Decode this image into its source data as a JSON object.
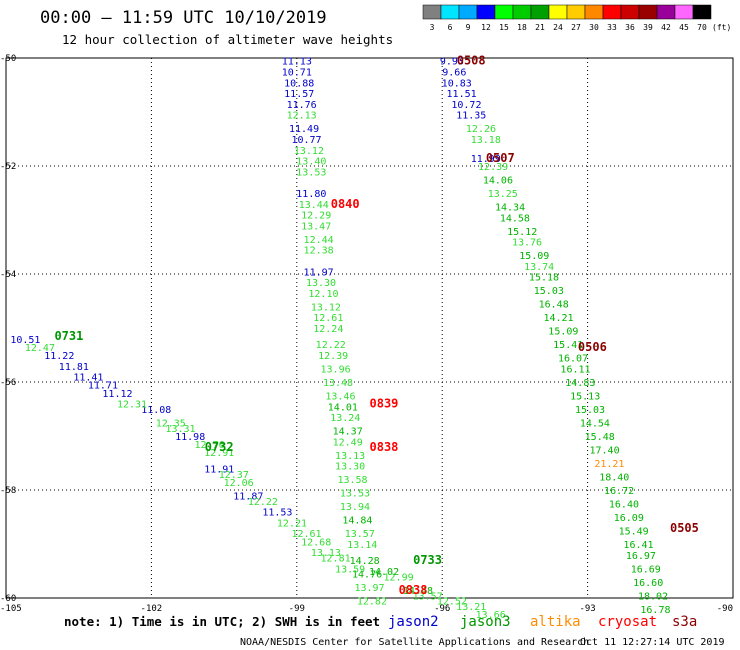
{
  "header": {
    "title": "00:00 — 11:59 UTC 10/10/2019",
    "subtitle": "12 hour collection of altimeter wave heights"
  },
  "colors": {
    "jason2": "#0000cc",
    "jason3": "#009600",
    "altika": "#ff8c00",
    "cryosat": "#ff0000",
    "s3a": "#8b0000"
  },
  "scale": {
    "labels": [
      "3",
      "6",
      "9",
      "12",
      "15",
      "18",
      "21",
      "24",
      "27",
      "30",
      "33",
      "36",
      "39",
      "42",
      "45",
      "70"
    ],
    "unit": "(ft)",
    "colors": [
      "#808080",
      "#00e5ff",
      "#00aaff",
      "#0000ff",
      "#00ff00",
      "#00cc00",
      "#00a000",
      "#ffff00",
      "#ffcc00",
      "#ff8800",
      "#ff0000",
      "#cc0000",
      "#990000",
      "#990099",
      "#ff66ff",
      "#000000"
    ]
  },
  "footer": {
    "note": "note: 1) Time is in UTC; 2) SWH is in feet",
    "legend": [
      {
        "name": "jason2",
        "color": "#0000cc"
      },
      {
        "name": "jason3",
        "color": "#009600"
      },
      {
        "name": "altika",
        "color": "#ff8c00"
      },
      {
        "name": "cryosat",
        "color": "#ff0000"
      },
      {
        "name": "s3a",
        "color": "#8b0000"
      }
    ],
    "credit": "NOAA/NESDIS Center for Satellite Applications and Research",
    "stamp": "Oct 11 12:27:14 UTC 2019"
  },
  "chart_data": {
    "type": "scatter",
    "xlim": [
      -105,
      -90
    ],
    "ylim": [
      -60,
      -50
    ],
    "xticks": [
      -105,
      -102,
      -99,
      -96,
      -93,
      -90
    ],
    "yticks": [
      -50,
      -52,
      -54,
      -56,
      -58,
      -60
    ],
    "x_tick_labels": [
      "-105",
      "-102",
      "-99",
      "-96",
      "-93",
      "-90"
    ],
    "y_tick_labels": [
      "-50",
      "-52",
      "-54",
      "-56",
      "-58",
      "-60"
    ],
    "grid": true,
    "time_labels": [
      {
        "text": "0508",
        "x": -95.7,
        "y": -50.05,
        "color": "#8b0000"
      },
      {
        "text": "0507",
        "x": -95.1,
        "y": -51.85,
        "color": "#8b0000"
      },
      {
        "text": "0840",
        "x": -98.3,
        "y": -52.7,
        "color": "#ff0000"
      },
      {
        "text": "0731",
        "x": -104.0,
        "y": -55.15,
        "color": "#009600"
      },
      {
        "text": "0506",
        "x": -93.2,
        "y": -55.35,
        "color": "#8b0000"
      },
      {
        "text": "0839",
        "x": -97.5,
        "y": -56.4,
        "color": "#ff0000"
      },
      {
        "text": "0838",
        "x": -97.5,
        "y": -57.2,
        "color": "#ff0000"
      },
      {
        "text": "0732",
        "x": -100.9,
        "y": -57.2,
        "color": "#009600"
      },
      {
        "text": "0733",
        "x": -96.6,
        "y": -59.3,
        "color": "#009600"
      },
      {
        "text": "0505",
        "x": -91.3,
        "y": -58.7,
        "color": "#8b0000"
      },
      {
        "text": "0838",
        "x": -96.9,
        "y": -59.85,
        "color": "#ff0000"
      }
    ],
    "series": [
      {
        "name": "jason2",
        "color": "#0000cc",
        "points": [
          {
            "x": -99.0,
            "y": -50.05,
            "v": "11.13"
          },
          {
            "x": -99.0,
            "y": -50.25,
            "v": "10.71"
          },
          {
            "x": -98.95,
            "y": -50.45,
            "v": "10.88"
          },
          {
            "x": -98.95,
            "y": -50.65,
            "v": "11.57"
          },
          {
            "x": -98.9,
            "y": -50.85,
            "v": "11.76"
          },
          {
            "x": -98.85,
            "y": -51.3,
            "v": "11.49"
          },
          {
            "x": -98.8,
            "y": -51.5,
            "v": "10.77"
          },
          {
            "x": -98.7,
            "y": -52.5,
            "v": "11.80"
          },
          {
            "x": -98.55,
            "y": -53.95,
            "v": "11.97"
          },
          {
            "x": -95.8,
            "y": -50.05,
            "v": "9.93"
          },
          {
            "x": -95.75,
            "y": -50.25,
            "v": "9.66"
          },
          {
            "x": -95.7,
            "y": -50.45,
            "v": "10.83"
          },
          {
            "x": -95.6,
            "y": -50.65,
            "v": "11.51"
          },
          {
            "x": -95.5,
            "y": -50.85,
            "v": "10.72"
          },
          {
            "x": -95.4,
            "y": -51.05,
            "v": "11.35"
          },
          {
            "x": -95.1,
            "y": -51.85,
            "v": "11.99"
          },
          {
            "x": -104.6,
            "y": -55.2,
            "v": "10.51"
          },
          {
            "x": -103.9,
            "y": -55.5,
            "v": "11.22"
          },
          {
            "x": -103.6,
            "y": -55.7,
            "v": "11.81"
          },
          {
            "x": -103.3,
            "y": -55.9,
            "v": "11.41"
          },
          {
            "x": -103.0,
            "y": -56.05,
            "v": "11.71"
          },
          {
            "x": -102.7,
            "y": -56.2,
            "v": "11.12"
          },
          {
            "x": -101.9,
            "y": -56.5,
            "v": "11.08"
          },
          {
            "x": -101.2,
            "y": -57.0,
            "v": "11.98"
          },
          {
            "x": -100.6,
            "y": -57.6,
            "v": "11.91"
          },
          {
            "x": -100.0,
            "y": -58.1,
            "v": "11.87"
          },
          {
            "x": -99.4,
            "y": -58.4,
            "v": "11.53"
          }
        ]
      },
      {
        "name": "jason3",
        "color": "#009600",
        "points": [
          {
            "x": -98.9,
            "y": -51.05,
            "v": "12.13"
          },
          {
            "x": -98.75,
            "y": -51.7,
            "v": "13.12"
          },
          {
            "x": -98.7,
            "y": -51.9,
            "v": "13.40"
          },
          {
            "x": -98.7,
            "y": -52.1,
            "v": "13.53"
          },
          {
            "x": -98.65,
            "y": -52.7,
            "v": "13.44"
          },
          {
            "x": -98.6,
            "y": -52.9,
            "v": "12.29"
          },
          {
            "x": -98.6,
            "y": -53.1,
            "v": "13.47"
          },
          {
            "x": -98.55,
            "y": -53.35,
            "v": "12.44"
          },
          {
            "x": -98.55,
            "y": -53.55,
            "v": "12.38"
          },
          {
            "x": -98.5,
            "y": -54.15,
            "v": "13.30"
          },
          {
            "x": -98.45,
            "y": -54.35,
            "v": "12.10"
          },
          {
            "x": -98.4,
            "y": -54.6,
            "v": "13.12"
          },
          {
            "x": -98.35,
            "y": -54.8,
            "v": "12.61"
          },
          {
            "x": -98.35,
            "y": -55.0,
            "v": "12.24"
          },
          {
            "x": -98.3,
            "y": -55.3,
            "v": "12.22"
          },
          {
            "x": -98.25,
            "y": -55.5,
            "v": "12.39"
          },
          {
            "x": -98.2,
            "y": -55.75,
            "v": "13.96"
          },
          {
            "x": -98.15,
            "y": -56.0,
            "v": "13.48"
          },
          {
            "x": -98.1,
            "y": -56.25,
            "v": "13.46"
          },
          {
            "x": -98.05,
            "y": -56.45,
            "v": "14.01"
          },
          {
            "x": -98.0,
            "y": -56.65,
            "v": "13.24"
          },
          {
            "x": -97.95,
            "y": -56.9,
            "v": "14.37"
          },
          {
            "x": -97.95,
            "y": -57.1,
            "v": "12.49"
          },
          {
            "x": -97.9,
            "y": -57.35,
            "v": "13.13"
          },
          {
            "x": -97.9,
            "y": -57.55,
            "v": "13.30"
          },
          {
            "x": -97.85,
            "y": -57.8,
            "v": "13.58"
          },
          {
            "x": -97.8,
            "y": -58.05,
            "v": "13.53"
          },
          {
            "x": -97.8,
            "y": -58.3,
            "v": "13.94"
          },
          {
            "x": -97.75,
            "y": -58.55,
            "v": "14.84"
          },
          {
            "x": -97.7,
            "y": -58.8,
            "v": "13.57"
          },
          {
            "x": -97.65,
            "y": -59.0,
            "v": "13.14"
          },
          {
            "x": -97.6,
            "y": -59.3,
            "v": "14.28"
          },
          {
            "x": -97.55,
            "y": -59.55,
            "v": "14.76"
          },
          {
            "x": -97.5,
            "y": -59.8,
            "v": "13.97"
          },
          {
            "x": -97.45,
            "y": -60.05,
            "v": "12.82"
          },
          {
            "x": -95.2,
            "y": -51.3,
            "v": "12.26"
          },
          {
            "x": -95.1,
            "y": -51.5,
            "v": "13.18"
          },
          {
            "x": -94.95,
            "y": -52.0,
            "v": "12.39"
          },
          {
            "x": -94.85,
            "y": -52.25,
            "v": "14.06"
          },
          {
            "x": -94.75,
            "y": -52.5,
            "v": "13.25"
          },
          {
            "x": -94.6,
            "y": -52.75,
            "v": "14.34"
          },
          {
            "x": -94.5,
            "y": -52.95,
            "v": "14.58"
          },
          {
            "x": -94.35,
            "y": -53.2,
            "v": "15.12"
          },
          {
            "x": -94.25,
            "y": -53.4,
            "v": "13.76"
          },
          {
            "x": -94.1,
            "y": -53.65,
            "v": "15.09"
          },
          {
            "x": -94.0,
            "y": -53.85,
            "v": "13.74"
          },
          {
            "x": -93.9,
            "y": -54.05,
            "v": "15.18"
          },
          {
            "x": -93.8,
            "y": -54.3,
            "v": "15.03"
          },
          {
            "x": -93.7,
            "y": -54.55,
            "v": "16.48"
          },
          {
            "x": -93.6,
            "y": -54.8,
            "v": "14.21"
          },
          {
            "x": -93.5,
            "y": -55.05,
            "v": "15.09"
          },
          {
            "x": -93.4,
            "y": -55.3,
            "v": "15.41"
          },
          {
            "x": -93.3,
            "y": -55.55,
            "v": "16.07"
          },
          {
            "x": -93.25,
            "y": -55.75,
            "v": "16.11"
          },
          {
            "x": -93.15,
            "y": -56.0,
            "v": "14.83"
          },
          {
            "x": -93.05,
            "y": -56.25,
            "v": "15.13"
          },
          {
            "x": -92.95,
            "y": -56.5,
            "v": "15.03"
          },
          {
            "x": -92.85,
            "y": -56.75,
            "v": "14.54"
          },
          {
            "x": -92.75,
            "y": -57.0,
            "v": "15.48"
          },
          {
            "x": -92.65,
            "y": -57.25,
            "v": "17.40"
          },
          {
            "x": -92.45,
            "y": -57.75,
            "v": "18.40"
          },
          {
            "x": -92.35,
            "y": -58.0,
            "v": "16.72"
          },
          {
            "x": -92.25,
            "y": -58.25,
            "v": "16.40"
          },
          {
            "x": -92.15,
            "y": -58.5,
            "v": "16.09"
          },
          {
            "x": -92.05,
            "y": -58.75,
            "v": "15.49"
          },
          {
            "x": -91.95,
            "y": -59.0,
            "v": "16.41"
          },
          {
            "x": -91.9,
            "y": -59.2,
            "v": "16.97"
          },
          {
            "x": -91.8,
            "y": -59.45,
            "v": "16.69"
          },
          {
            "x": -91.75,
            "y": -59.7,
            "v": "16.60"
          },
          {
            "x": -91.65,
            "y": -59.95,
            "v": "18.02"
          },
          {
            "x": -91.6,
            "y": -60.2,
            "v": "16.78"
          },
          {
            "x": -104.3,
            "y": -55.35,
            "v": "12.47"
          },
          {
            "x": -102.4,
            "y": -56.4,
            "v": "12.31"
          },
          {
            "x": -101.6,
            "y": -56.75,
            "v": "12.35"
          },
          {
            "x": -101.4,
            "y": -56.85,
            "v": "13.31"
          },
          {
            "x": -100.8,
            "y": -57.15,
            "v": "12.76"
          },
          {
            "x": -100.6,
            "y": -57.3,
            "v": "12.91"
          },
          {
            "x": -100.3,
            "y": -57.7,
            "v": "12.37"
          },
          {
            "x": -100.2,
            "y": -57.85,
            "v": "12.06"
          },
          {
            "x": -99.7,
            "y": -58.2,
            "v": "12.22"
          },
          {
            "x": -99.1,
            "y": -58.6,
            "v": "12.21"
          },
          {
            "x": -98.8,
            "y": -58.8,
            "v": "12.61"
          },
          {
            "x": -98.6,
            "y": -58.95,
            "v": "12.68"
          },
          {
            "x": -98.4,
            "y": -59.15,
            "v": "13.13"
          },
          {
            "x": -98.2,
            "y": -59.25,
            "v": "12.81"
          },
          {
            "x": -97.9,
            "y": -59.45,
            "v": "13.59"
          },
          {
            "x": -97.2,
            "y": -59.5,
            "v": "14.02"
          },
          {
            "x": -96.9,
            "y": -59.6,
            "v": "12.99"
          },
          {
            "x": -96.5,
            "y": -59.85,
            "v": "14.48"
          },
          {
            "x": -96.3,
            "y": -59.95,
            "v": "13.57"
          },
          {
            "x": -95.8,
            "y": -60.05,
            "v": "12.52"
          },
          {
            "x": -95.4,
            "y": -60.15,
            "v": "13.21"
          },
          {
            "x": -95.0,
            "y": -60.3,
            "v": "13.66"
          }
        ]
      },
      {
        "name": "altika",
        "color": "#ff8c00",
        "points": [
          {
            "x": -92.55,
            "y": -57.5,
            "v": "21.21"
          }
        ]
      }
    ]
  }
}
